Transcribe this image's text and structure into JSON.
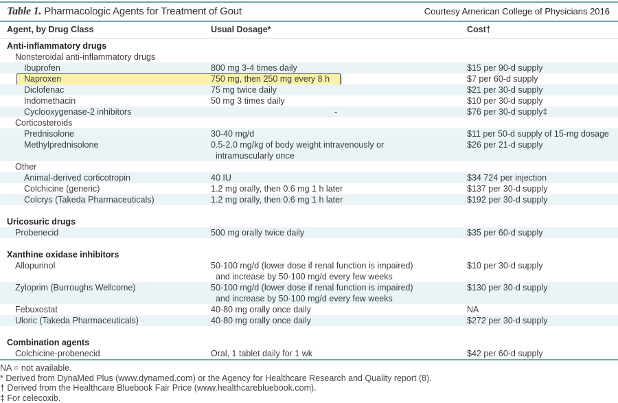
{
  "title": {
    "label": "Table 1.",
    "text": "Pharmacologic Agents for Treatment of Gout",
    "courtesy": "Courtesy American College of Physicians 2016"
  },
  "columns": [
    "Agent, by Drug Class",
    "Usual Dosage*",
    "Cost†"
  ],
  "rows": [
    {
      "type": "group",
      "agent": "Anti-inflammatory drugs"
    },
    {
      "type": "sub",
      "agent": "Nonsteroidal anti-inflammatory drugs"
    },
    {
      "type": "drug",
      "agent": "Ibuprofen",
      "dosage": "800 mg 3-4 times daily",
      "cost": "$15 per 90-d supply",
      "shade": true
    },
    {
      "type": "drug",
      "agent": "Naproxen",
      "dosage": "750 mg, then 250 mg every 8 h",
      "cost": "$7 per 60-d supply",
      "highlight": true
    },
    {
      "type": "drug",
      "agent": "Diclofenac",
      "dosage": "75 mg twice daily",
      "cost": "$21 per 30-d supply",
      "shade": true
    },
    {
      "type": "drug",
      "agent": "Indomethacin",
      "dosage": "50 mg 3 times daily",
      "cost": "$10 per 30-d supply"
    },
    {
      "type": "drug",
      "agent": "Cyclooxygenase-2 inhibitors",
      "dosage": "-",
      "dosage_centered": true,
      "cost": "$76 per 30-d supply‡",
      "shade": true
    },
    {
      "type": "sub",
      "agent": "Corticosteroids"
    },
    {
      "type": "drug",
      "agent": "Prednisolone",
      "dosage": "30-40 mg/d",
      "cost": "$11 per 50-d supply of 15-mg dosage",
      "shade": true
    },
    {
      "type": "drug",
      "agent": "Methylprednisolone",
      "dosage": "0.5-2.0 mg/kg of body weight intravenously or\n  intramuscularly once",
      "cost": "$26 per 21-d supply",
      "shade": true
    },
    {
      "type": "sub",
      "agent": "Other"
    },
    {
      "type": "drug",
      "agent": "Animal-derived corticotropin",
      "dosage": "40 IU",
      "cost": "$34 724 per injection",
      "shade": true
    },
    {
      "type": "drug",
      "agent": "Colchicine (generic)",
      "dosage": "1.2 mg orally, then 0.6 mg 1 h later",
      "cost": "$137 per 30-d supply"
    },
    {
      "type": "drug",
      "agent": "Colcrys (Takeda Pharmaceuticals)",
      "dosage": "1.2 mg orally, then 0.6 mg 1 h later",
      "cost": "$192 per 30-d supply",
      "shade": true
    },
    {
      "type": "blank"
    },
    {
      "type": "group",
      "agent": "Uricosuric drugs"
    },
    {
      "type": "sub",
      "agent": "Probenecid",
      "dosage": "500 mg orally twice daily",
      "cost": "$35 per 60-d supply",
      "shade": true
    },
    {
      "type": "blank"
    },
    {
      "type": "group",
      "agent": "Xanthine oxidase inhibitors"
    },
    {
      "type": "sub",
      "agent": "Allopurinol",
      "dosage": "50-100 mg/d (lower dose if renal function is impaired)\n  and increase by 50-100 mg/d every few weeks",
      "cost": "$10 per 30-d supply"
    },
    {
      "type": "sub",
      "agent": "Zyloprim (Burroughs Wellcome)",
      "dosage": "50-100 mg/d (lower dose if renal function is impaired)\n  and increase by 50-100 mg/d every few weeks",
      "cost": "$130 per 30-d supply",
      "shade": true
    },
    {
      "type": "sub",
      "agent": "Febuxostat",
      "dosage": "40-80 mg orally once daily",
      "cost": "NA"
    },
    {
      "type": "sub",
      "agent": "Uloric (Takeda Pharmaceuticals)",
      "dosage": "40-80 mg orally once daily",
      "cost": "$272 per 30-d supply",
      "shade": true
    },
    {
      "type": "blank"
    },
    {
      "type": "group",
      "agent": "Combination agents"
    },
    {
      "type": "sub",
      "agent": "Colchicine-probenecid",
      "dosage": "Oral, 1 tablet daily for 1 wk",
      "cost": "$42 per 60-d supply"
    }
  ],
  "notes": [
    "NA = not available.",
    "* Derived from DynaMed Plus (www.dynamed.com) or the Agency for Healthcare Research and Quality report (8).",
    "† Derived from the Healthcare Bluebook Fair Price (www.healthcarebluebook.com).",
    "‡ For celecoxib."
  ],
  "colors": {
    "rule": "#6aa9b0",
    "row_shade": "#eaf4f6",
    "highlight": "#fbf1a6"
  }
}
